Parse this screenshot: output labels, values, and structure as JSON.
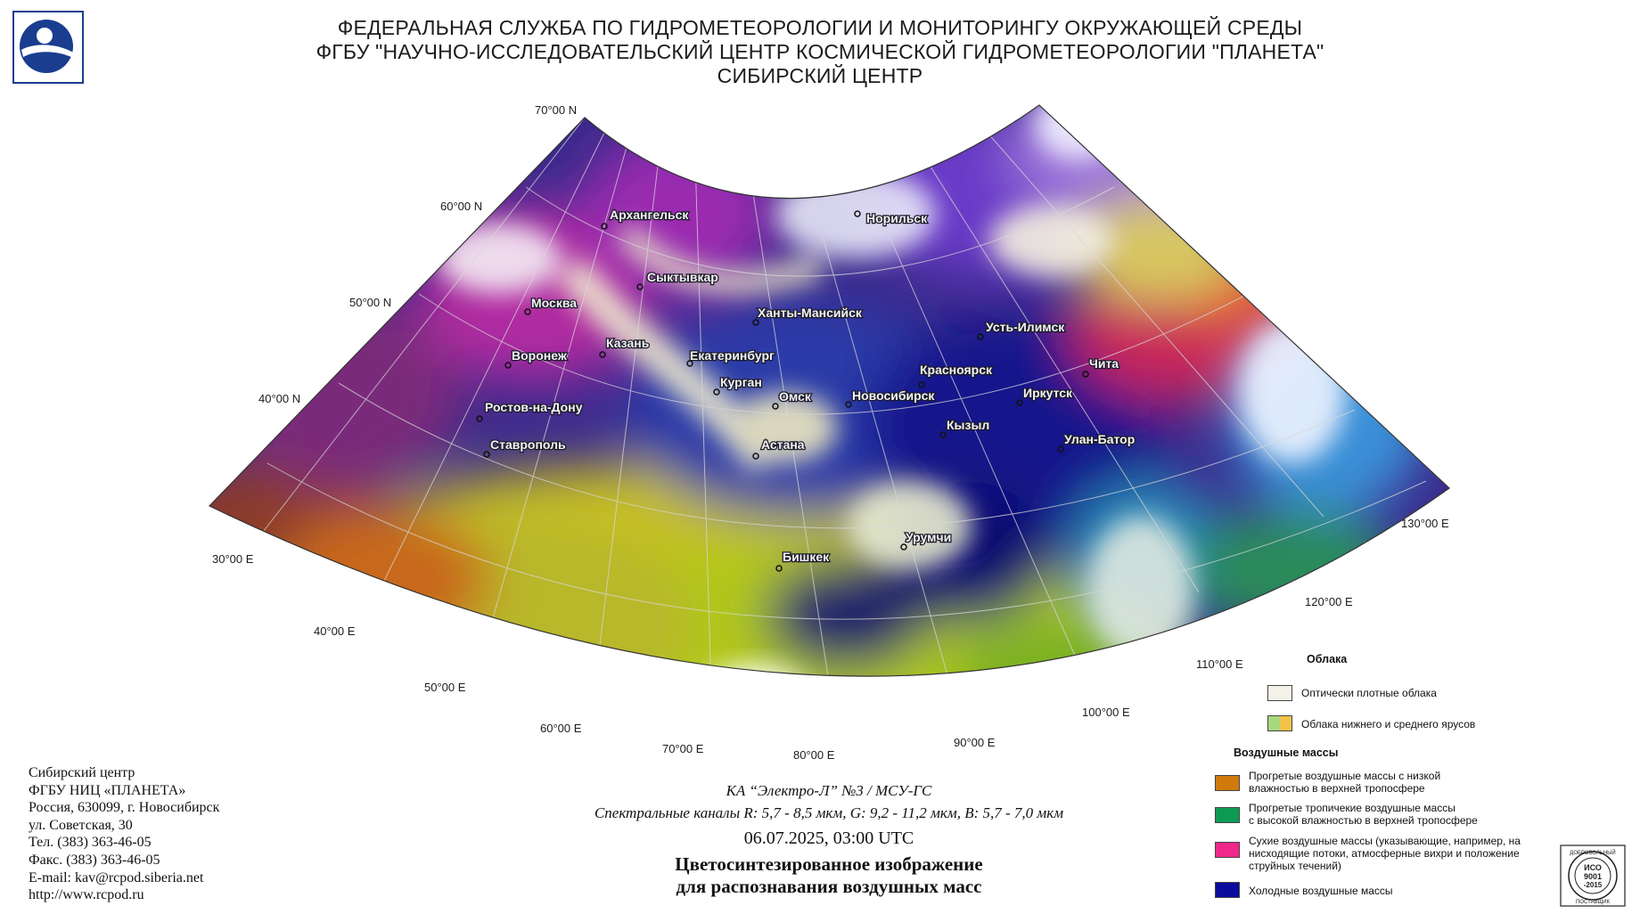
{
  "header": {
    "line1": "ФЕДЕРАЛЬНАЯ СЛУЖБА ПО ГИДРОМЕТЕОРОЛОГИИ И МОНИТОРИНГУ ОКРУЖАЮЩЕЙ СРЕДЫ",
    "line2": "ФГБУ \"НАУЧНО-ИССЛЕДОВАТЕЛЬСКИЙ ЦЕНТР КОСМИЧЕСКОЙ ГИДРОМЕТЕОРОЛОГИИ \"ПЛАНЕТА\"",
    "line3": "СИБИРСКИЙ ЦЕНТР"
  },
  "logo_icon": "roshydromet-globe-logo",
  "map": {
    "latitude_labels": [
      "70°00 N",
      "60°00 N",
      "50°00 N",
      "40°00 N"
    ],
    "longitude_labels": [
      "30°00 E",
      "40°00 E",
      "50°00 E",
      "60°00 E",
      "70°00 E",
      "80°00 E",
      "90°00 E",
      "100°00 E",
      "110°00 E",
      "120°00 E",
      "130°00 E"
    ],
    "cities": [
      "Архангельск",
      "Норильск",
      "Сыктывкар",
      "Москва",
      "Ханты-Мансийск",
      "Усть-Илимск",
      "Казань",
      "Воронеж",
      "Екатеринбург",
      "Красноярск",
      "Чита",
      "Курган",
      "Омск",
      "Новосибирск",
      "Иркутск",
      "Ростов-на-Дону",
      "Кызыл",
      "Улан-Батор",
      "Ставрополь",
      "Астана",
      "Урумчи",
      "Бишкек"
    ]
  },
  "address": {
    "org": "Сибирский центр",
    "name": "ФГБУ НИЦ «ПЛАНЕТА»",
    "city": "Россия, 630099, г. Новосибирск",
    "street": "ул. Советская, 30",
    "phone": "Тел. (383) 363-46-05",
    "fax": "Факс. (383) 363-46-05",
    "email": "E-mail: kav@rcpod.siberia.net",
    "web": "http://www.rcpod.ru"
  },
  "caption": {
    "satellite": "КА “Электро-Л” №3 / МСУ-ГС",
    "channels": "Спектральные каналы R: 5,7 - 8,5 мкм, G: 9,2 - 11,2 мкм, B: 5,7 - 7,0 мкм",
    "datetime": "06.07.2025, 03:00 UTC",
    "title1": "Цветосинтезированное изображение",
    "title2": "для распознавания воздушных масс"
  },
  "legend": {
    "clouds_title": "Облака",
    "clouds": [
      {
        "label": "Оптически плотные облака",
        "color": "#f4f2e8"
      },
      {
        "label": "Облака нижнего и среднего ярусов",
        "color": "#a8d87c",
        "color2": "#f2c34a"
      }
    ],
    "air_title": "Воздушные массы",
    "air": [
      {
        "label1": "Прогретые воздушные массы с низкой",
        "label2": "влажностью в верхней тропосфере",
        "label3": "",
        "color": "#d07a0c"
      },
      {
        "label1": "Прогретые тропичекие воздушные массы",
        "label2": "с высокой влажностью в верхней тропосфере",
        "label3": "",
        "color": "#0e9a52"
      },
      {
        "label1": "Сухие воздушные массы (указывающие, например, на",
        "label2": "нисходящие потоки, атмосферные вихри и положение",
        "label3": "струйных течений)",
        "color": "#f0288c"
      },
      {
        "label1": "Холодные воздушные массы",
        "label2": "",
        "label3": "",
        "color": "#0c0c9c"
      }
    ]
  },
  "iso_badge": {
    "top": "ДОБРОВОЛЬНЫЙ",
    "mid1": "ИСО",
    "mid2": "9001",
    "mid3": "-2015",
    "bottom": "ПОСТАВЩИК"
  }
}
